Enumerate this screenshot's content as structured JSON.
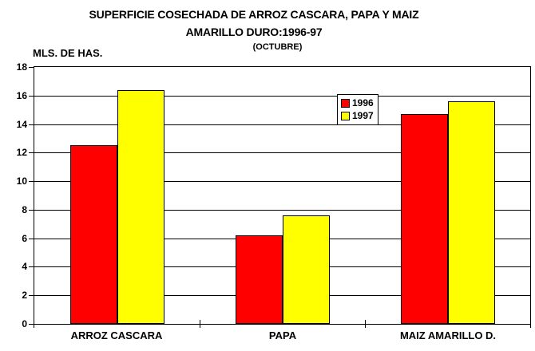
{
  "title": {
    "line1": "SUPERFICIE COSECHADA DE ARROZ CASCARA, PAPA Y MAIZ",
    "line2": "AMARILLO DURO:1996-97",
    "line3": "(OCTUBRE)"
  },
  "axes": {
    "y_unit_label": "MLS. DE HAS."
  },
  "colors": {
    "series_1996": "#FF0000",
    "series_1997": "#FFFF00",
    "line": "#000000",
    "background": "#FFFFFF"
  },
  "chart_data": {
    "type": "bar",
    "title": "SUPERFICIE COSECHADA DE ARROZ CASCARA, PAPA Y MAIZ AMARILLO DURO:1996-97 (OCTUBRE)",
    "ylabel": "MLS. DE HAS.",
    "xlabel": "",
    "categories": [
      "ARROZ CASCARA",
      "PAPA",
      "MAIZ AMARILLO D."
    ],
    "series": [
      {
        "name": "1996",
        "color": "#FF0000",
        "values": [
          12.5,
          6.2,
          14.7
        ]
      },
      {
        "name": "1997",
        "color": "#FFFF00",
        "values": [
          16.4,
          7.6,
          15.6
        ]
      }
    ],
    "ylim": [
      0,
      18
    ],
    "ytick_step": 2,
    "grid": true,
    "legend_position": "inside-top-right"
  }
}
